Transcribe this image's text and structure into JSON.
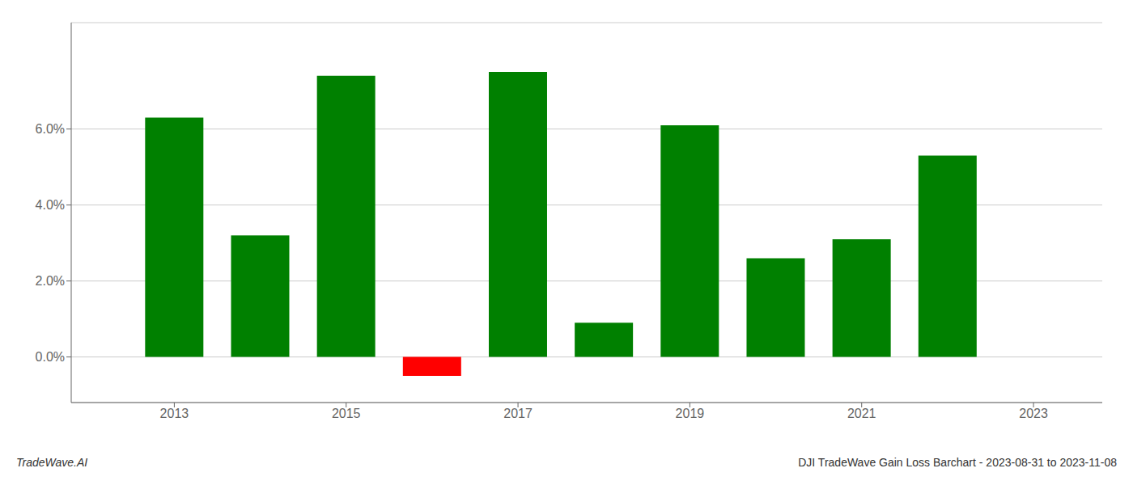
{
  "chart_data": {
    "type": "bar",
    "title": "DJI TradeWave Gain Loss Barchart - 2023-08-31 to 2023-11-08",
    "annotations": [
      "TradeWave.AI"
    ],
    "x": [
      2013,
      2014,
      2015,
      2016,
      2017,
      2018,
      2019,
      2020,
      2021,
      2022
    ],
    "values": [
      0.063,
      0.032,
      0.074,
      -0.005,
      0.075,
      0.009,
      0.061,
      0.026,
      0.031,
      0.053
    ],
    "colors": [
      "#008000",
      "#008000",
      "#008000",
      "#ff0000",
      "#008000",
      "#008000",
      "#008000",
      "#008000",
      "#008000",
      "#008000"
    ],
    "xlim": [
      2011.8,
      2023.8
    ],
    "xticks": [
      2013,
      2015,
      2017,
      2019,
      2021,
      2023
    ],
    "ylim": [
      -0.012,
      0.088
    ],
    "yticks": [
      {
        "value": 0.0,
        "label": "0.0%"
      },
      {
        "value": 0.02,
        "label": "2.0%"
      },
      {
        "value": 0.04,
        "label": "4.0%"
      },
      {
        "value": 0.06,
        "label": "6.0%"
      }
    ],
    "grid": true
  }
}
